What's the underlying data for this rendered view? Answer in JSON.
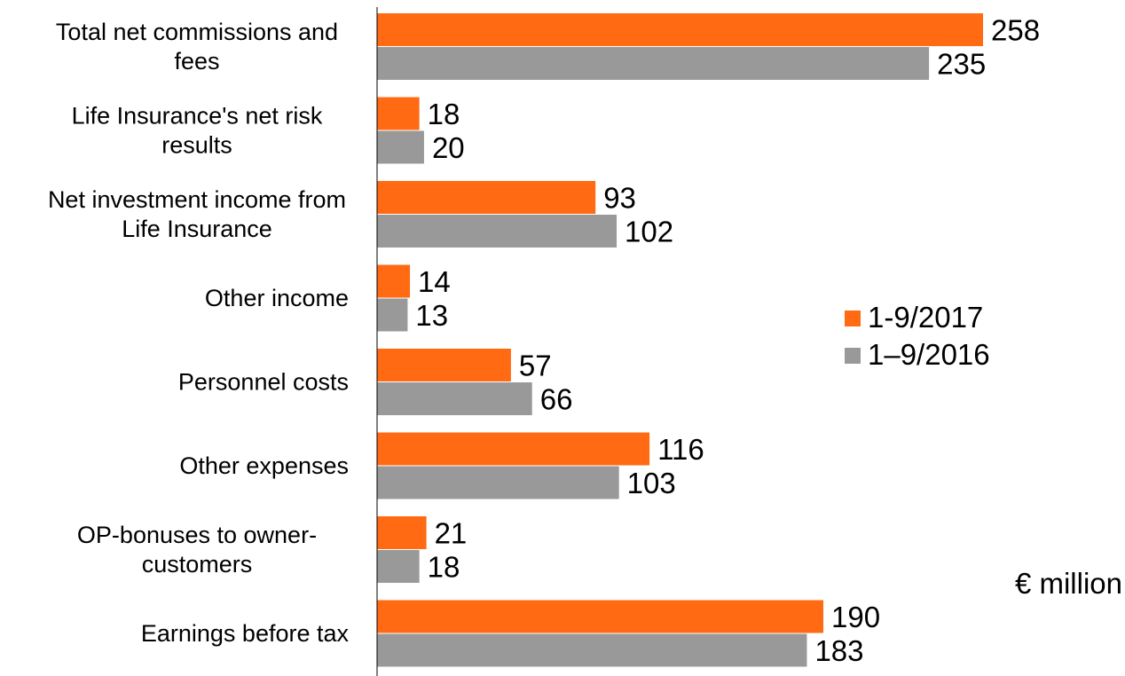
{
  "chart_data": {
    "type": "bar",
    "orientation": "horizontal",
    "categories": [
      [
        "Total net commissions and",
        "fees"
      ],
      [
        "Life Insurance's net risk",
        "results"
      ],
      [
        "Net investment income from",
        "Life Insurance"
      ],
      [
        "Other income"
      ],
      [
        "Personnel costs"
      ],
      [
        "Other expenses"
      ],
      [
        "OP-bonuses to owner-",
        "customers"
      ],
      [
        "Earnings before tax"
      ]
    ],
    "series": [
      {
        "name": "1-9/2017",
        "color": "#FF6A13",
        "values": [
          258,
          18,
          93,
          14,
          57,
          116,
          21,
          190
        ]
      },
      {
        "name": "1–9/2016",
        "color": "#999999",
        "values": [
          235,
          20,
          102,
          13,
          66,
          103,
          18,
          183
        ]
      }
    ],
    "unit_label": "€ million",
    "xlim": [
      0,
      300
    ],
    "legend_position": "right",
    "grid": false
  }
}
